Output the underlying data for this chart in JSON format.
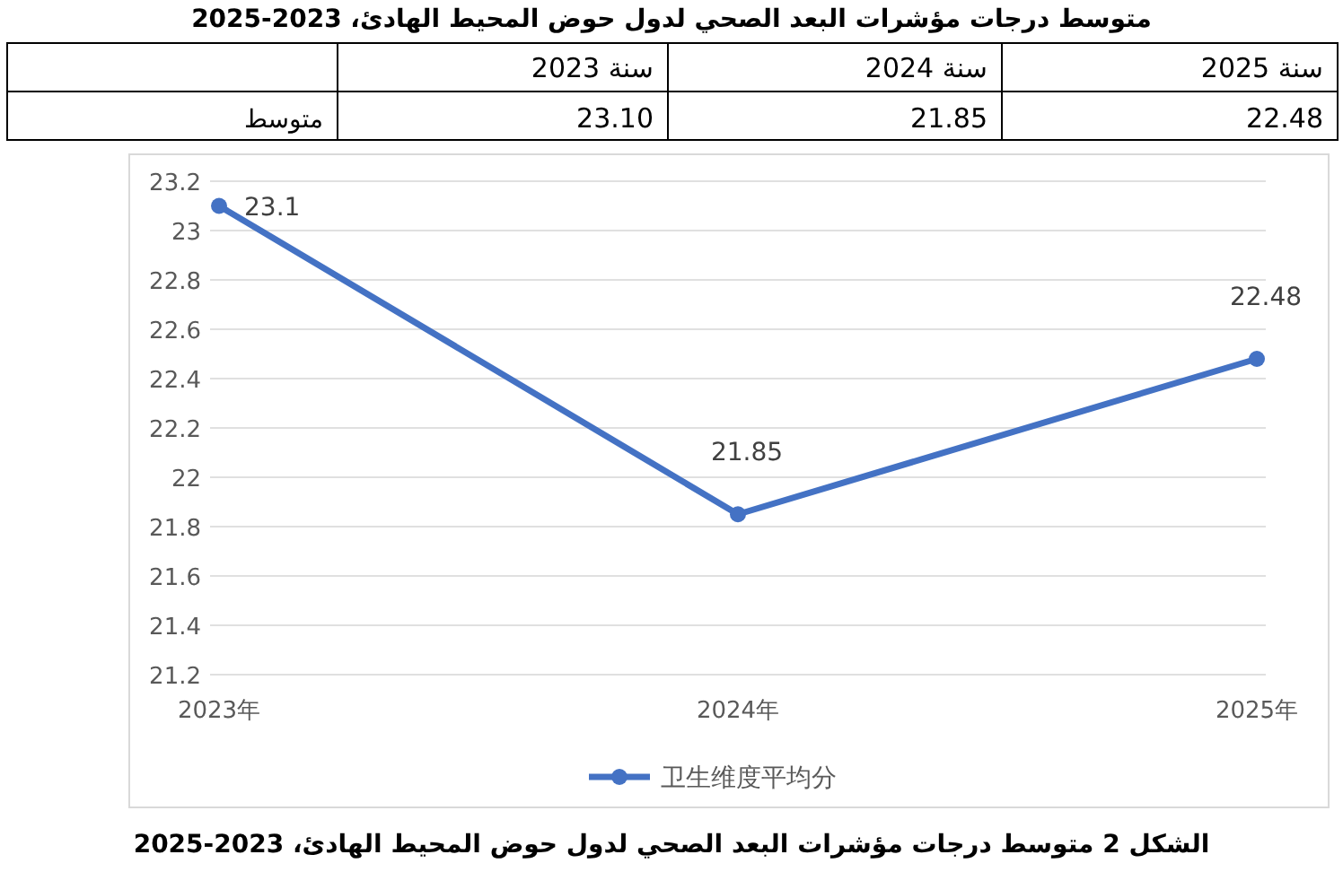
{
  "chart_data": {
    "type": "line",
    "title": "متوسط درجات مؤشرات البعد الصحي لدول حوض المحيط الهادئ، 2023-2025",
    "categories": [
      "2023年",
      "2024年",
      "2025年"
    ],
    "series": [
      {
        "name": "卫生维度平均分",
        "color": "#4472c4",
        "values": [
          23.1,
          21.85,
          22.48
        ]
      }
    ],
    "data_labels": true,
    "ylim": [
      21.2,
      23.2
    ],
    "yticks": [
      21.2,
      21.4,
      21.6,
      21.8,
      22,
      22.2,
      22.4,
      22.6,
      22.8,
      23,
      23.2
    ],
    "grid": "y",
    "legend": "bottom",
    "marker": "circle",
    "annotations": [
      "الشكل 2 متوسط درجات مؤشرات البعد الصحي لدول حوض المحيط الهادئ، 2023-2025",
      "سنة 2023",
      "سنة 2024",
      "سنة 2025",
      "متوسط",
      "23.10",
      "21.85",
      "22.48"
    ]
  }
}
